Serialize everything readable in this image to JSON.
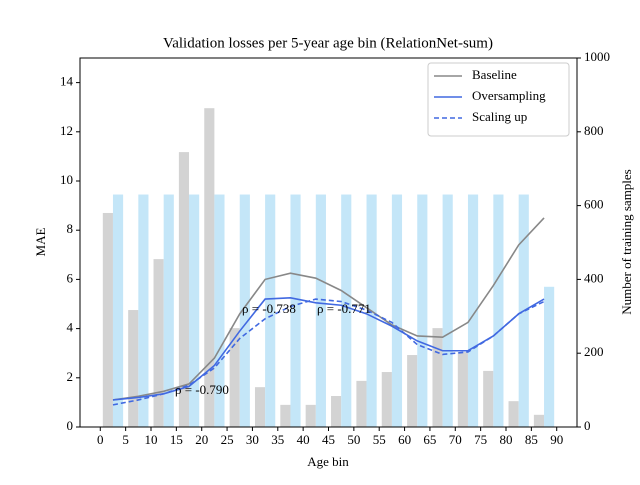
{
  "chart_data": {
    "type": "line",
    "title": "Validation losses per 5-year age bin (RelationNet-sum)",
    "x_label": "Age bin",
    "y_label": "MAE",
    "y2_label": "Number of training samples",
    "x": [
      2.5,
      7.5,
      12.5,
      17.5,
      22.5,
      27.5,
      32.5,
      37.5,
      42.5,
      47.5,
      52.5,
      57.5,
      62.5,
      67.5,
      72.5,
      77.5,
      82.5,
      87.5
    ],
    "xlim": [
      -4,
      94
    ],
    "xticks": [
      0,
      5,
      10,
      15,
      20,
      25,
      30,
      35,
      40,
      45,
      50,
      55,
      60,
      65,
      70,
      75,
      80,
      85,
      90
    ],
    "ylim": [
      0,
      15
    ],
    "yticks": [
      0,
      2,
      4,
      6,
      8,
      10,
      12,
      14
    ],
    "y2lim": [
      0,
      1000
    ],
    "y2ticks": [
      0,
      200,
      400,
      600,
      800,
      1000
    ],
    "legend": "upper right",
    "series": [
      {
        "type": "bar",
        "axis": "y2",
        "color": "#d3d3d3",
        "values": [
          580,
          317,
          455,
          745,
          864,
          268,
          108,
          60,
          60,
          84,
          125,
          149,
          195,
          268,
          203,
          152,
          70,
          33
        ]
      },
      {
        "type": "bar",
        "axis": "y2",
        "color": "#c4e6f8",
        "values": [
          630,
          630,
          630,
          630,
          630,
          630,
          630,
          630,
          630,
          630,
          630,
          630,
          630,
          630,
          630,
          630,
          630,
          380
        ]
      },
      {
        "type": "line",
        "name": "Baseline",
        "color": "#888888",
        "style": "solid",
        "values": [
          1.1,
          1.25,
          1.45,
          1.75,
          2.8,
          4.6,
          6.0,
          6.25,
          6.05,
          5.55,
          4.85,
          4.15,
          3.7,
          3.65,
          4.25,
          5.75,
          7.4,
          8.5
        ]
      },
      {
        "type": "line",
        "name": "Oversampling",
        "color": "#4169e1",
        "style": "solid",
        "values": [
          1.1,
          1.2,
          1.35,
          1.65,
          2.5,
          3.9,
          5.2,
          5.25,
          5.05,
          4.95,
          4.6,
          4.1,
          3.5,
          3.1,
          3.1,
          3.7,
          4.6,
          5.2
        ]
      },
      {
        "type": "line",
        "name": "Scaling up",
        "color": "#4169e1",
        "style": "dashed",
        "values": [
          0.9,
          1.1,
          1.35,
          1.7,
          2.4,
          3.6,
          4.4,
          4.9,
          5.2,
          5.1,
          4.75,
          4.25,
          3.35,
          2.95,
          3.05,
          3.7,
          4.6,
          5.1
        ]
      }
    ],
    "annotations": [
      {
        "text": "ρ = -0.790",
        "color": "#888888"
      },
      {
        "text": "ρ = -0.738",
        "color": "#4169e1"
      },
      {
        "text": "ρ = -0.771",
        "color": "#4169e1"
      }
    ]
  }
}
